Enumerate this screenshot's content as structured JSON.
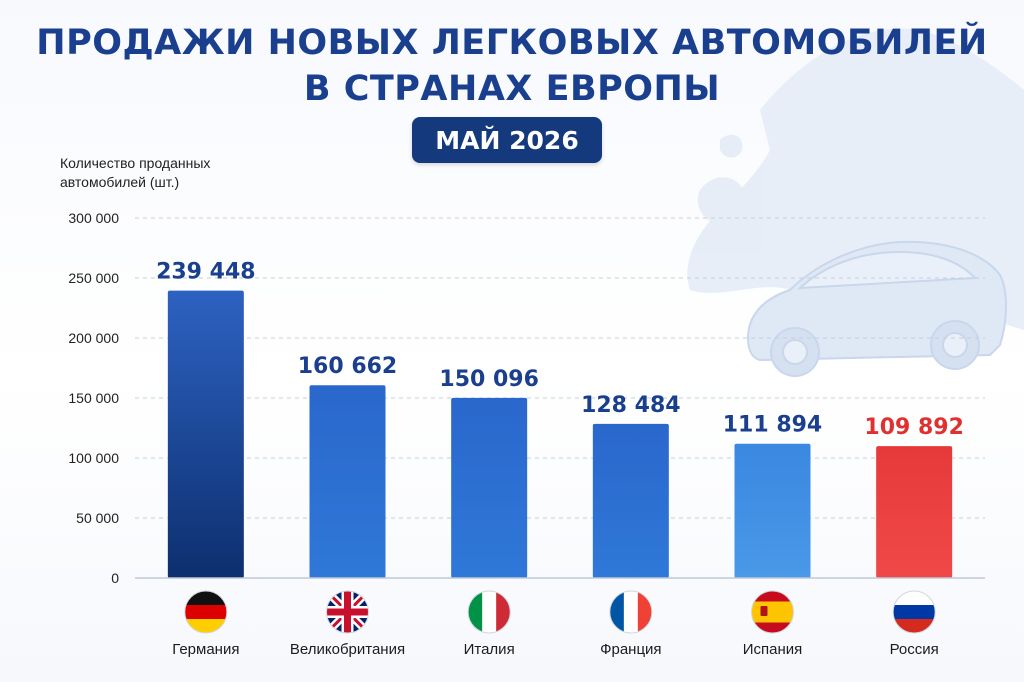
{
  "header": {
    "title_line1": "ПРОДАЖИ НОВЫХ ЛЕГКОВЫХ АВТОМОБИЛЕЙ",
    "title_line2": "В СТРАНАХ ЕВРОПЫ",
    "period_badge": "МАЙ 2026"
  },
  "colors": {
    "title": "#1a3f8f",
    "badge": "#143a7d",
    "bar_top": "#1f4fa8",
    "bar_light": "#3f8ee0",
    "highlight": "#e03131",
    "label_blue": "#1a3f8f"
  },
  "chart_data": {
    "type": "bar",
    "ylabel": "Количество проданных автомобилей (шт.)",
    "ylabel_lines": [
      "Количество проданных",
      "автомобилей (шт.)"
    ],
    "ylim": [
      0,
      300000
    ],
    "yticks": [
      0,
      50000,
      100000,
      150000,
      200000,
      250000,
      300000
    ],
    "ytick_labels": [
      "0",
      "50 000",
      "100 000",
      "150 000",
      "200 000",
      "250 000",
      "300 000"
    ],
    "grid": true,
    "categories": [
      "Германия",
      "Великобритания",
      "Италия",
      "Франция",
      "Испания",
      "Россия"
    ],
    "values": [
      239448,
      160662,
      150096,
      128484,
      111894,
      109892
    ],
    "value_labels": [
      "239 448",
      "160 662",
      "150 096",
      "128 484",
      "111 894",
      "109 892"
    ],
    "flags": [
      "germany-flag",
      "uk-flag",
      "italy-flag",
      "france-flag",
      "spain-flag",
      "russia-flag"
    ],
    "highlight_category": "Россия"
  }
}
